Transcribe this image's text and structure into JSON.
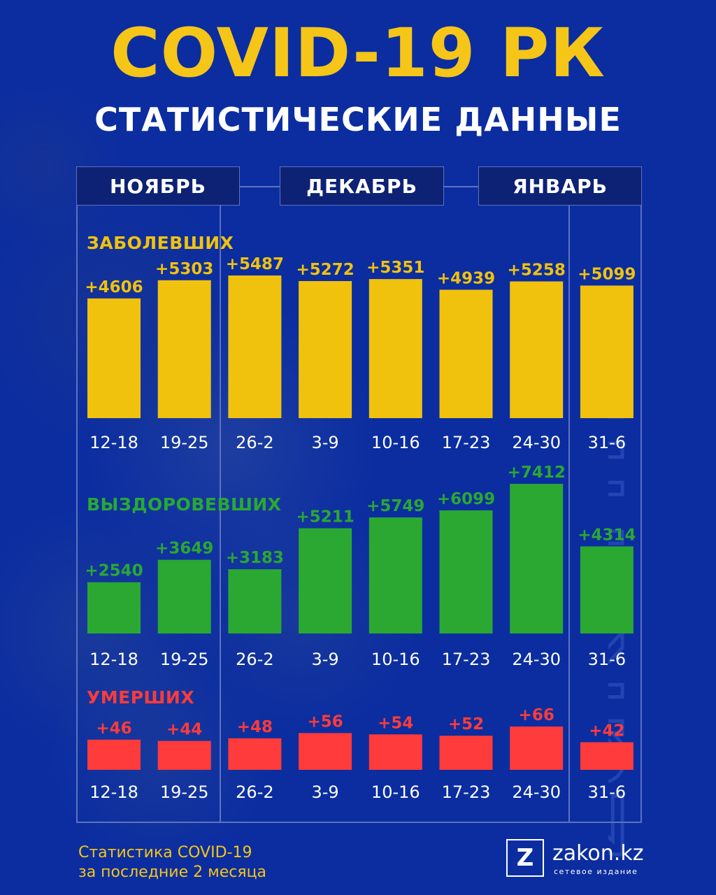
{
  "header": {
    "title": "COVID-19 РК",
    "subtitle": "СТАТИСТИЧЕСКИЕ ДАННЫЕ"
  },
  "months": [
    "НОЯБРЬ",
    "ДЕКАБРЬ",
    "ЯНВАРЬ"
  ],
  "watermark": "zakon.kz",
  "footer": {
    "line1": "Статистика COVID-19",
    "line2": "за последние 2 месяца",
    "logo_letter": "Z",
    "logo_name": "zakon.kz",
    "logo_tagline": "сетевое издание"
  },
  "colors": {
    "background": "#0b2da0",
    "cases": "#f0c20e",
    "recovered": "#2aa832",
    "deaths": "#ff3b3b",
    "title": "#f5c518"
  },
  "chart_data": [
    {
      "type": "bar",
      "label": "ЗАБОЛЕВШИХ",
      "categories": [
        "12-18",
        "19-25",
        "26-2",
        "3-9",
        "10-16",
        "17-23",
        "24-30",
        "31-6"
      ],
      "values": [
        4606,
        5303,
        5487,
        5272,
        5351,
        4939,
        5258,
        5099
      ],
      "value_labels": [
        "+4606",
        "+5303",
        "+5487",
        "+5272",
        "+5351",
        "+4939",
        "+5258",
        "+5099"
      ],
      "color": "#f0c20e"
    },
    {
      "type": "bar",
      "label": "ВЫЗДОРОВЕВШИХ",
      "categories": [
        "12-18",
        "19-25",
        "26-2",
        "3-9",
        "10-16",
        "17-23",
        "24-30",
        "31-6"
      ],
      "values": [
        2540,
        3649,
        3183,
        5211,
        5749,
        6099,
        7412,
        4314
      ],
      "value_labels": [
        "+2540",
        "+3649",
        "+3183",
        "+5211",
        "+5749",
        "+6099",
        "+7412",
        "+4314"
      ],
      "color": "#2aa832"
    },
    {
      "type": "bar",
      "label": "УМЕРШИХ",
      "categories": [
        "12-18",
        "19-25",
        "26-2",
        "3-9",
        "10-16",
        "17-23",
        "24-30",
        "31-6"
      ],
      "values": [
        46,
        44,
        48,
        56,
        54,
        52,
        66,
        42
      ],
      "value_labels": [
        "+46",
        "+44",
        "+48",
        "+56",
        "+54",
        "+52",
        "+66",
        "+42"
      ],
      "color": "#ff3b3b"
    }
  ]
}
